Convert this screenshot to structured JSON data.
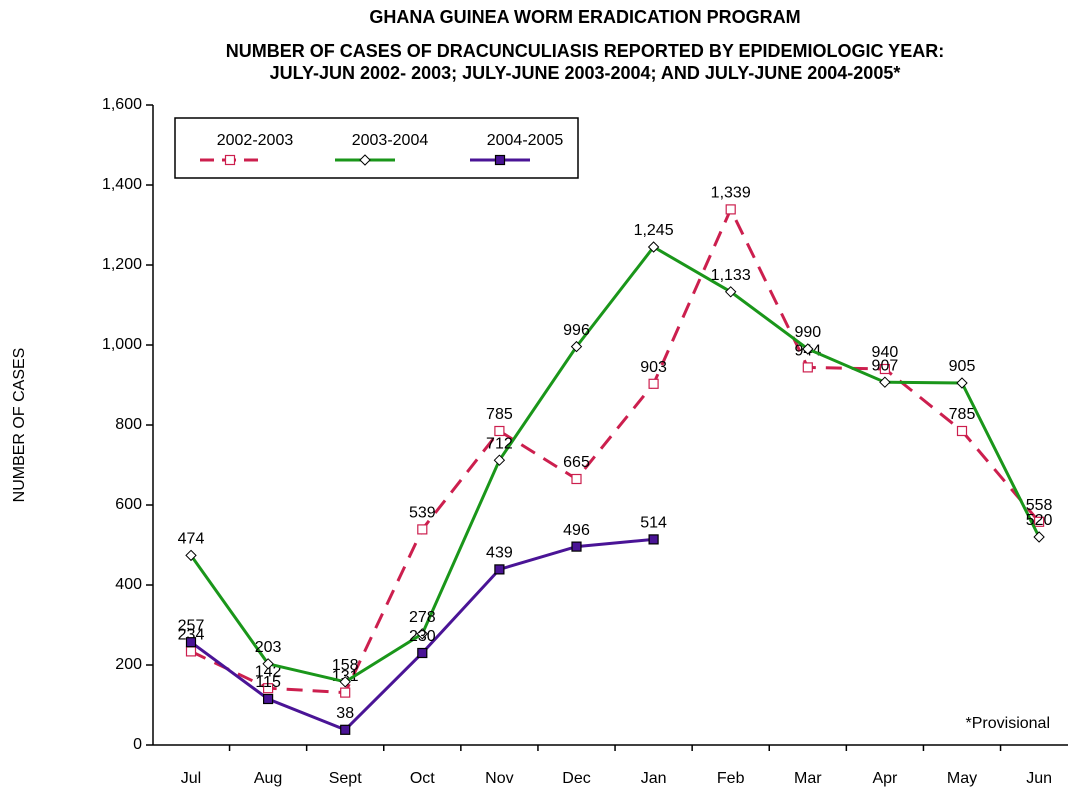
{
  "chart_data": {
    "type": "line",
    "title": "GHANA GUINEA WORM ERADICATION PROGRAM",
    "subtitle": [
      "NUMBER OF CASES OF DRACUNCULIASIS REPORTED BY EPIDEMIOLOGIC YEAR:",
      "JULY-JUN 2002- 2003; JULY-JUNE 2003-2004; AND JULY-JUNE 2004-2005*"
    ],
    "y_label": "NUMBER OF CASES",
    "annotation": "*Provisional",
    "categories": [
      "Jul",
      "Aug",
      "Sept",
      "Oct",
      "Nov",
      "Dec",
      "Jan",
      "Feb",
      "Mar",
      "Apr",
      "May",
      "Jun"
    ],
    "series": [
      {
        "name": "2002-2003",
        "color": "#cc1f4e",
        "dashed": true,
        "marker": "square",
        "values": [
          234,
          142,
          131,
          539,
          785,
          665,
          903,
          1339,
          944,
          940,
          785,
          558
        ],
        "value_labels": [
          "234",
          "142",
          "131",
          "539",
          "785",
          "665",
          "903",
          "1,339",
          "944",
          "940",
          "785",
          "558"
        ]
      },
      {
        "name": "2003-2004",
        "color": "#1a961a",
        "dashed": false,
        "marker": "diamond",
        "values": [
          474,
          203,
          158,
          278,
          712,
          996,
          1245,
          1133,
          990,
          907,
          905,
          520
        ],
        "value_labels": [
          "474",
          "203",
          "158",
          "278",
          "712",
          "996",
          "1,245",
          "1,133",
          "990",
          "907",
          "905",
          "520"
        ]
      },
      {
        "name": "2004-2005",
        "color": "#4a1496",
        "dashed": false,
        "marker": "filled-square",
        "values": [
          257,
          115,
          38,
          230,
          439,
          496,
          514,
          null,
          null,
          null,
          null,
          null
        ],
        "value_labels": [
          "257",
          "115",
          "38",
          "230",
          "439",
          "496",
          "514",
          null,
          null,
          null,
          null,
          null
        ]
      }
    ],
    "ylim": [
      0,
      1600
    ],
    "yticks": [
      0,
      200,
      400,
      600,
      800,
      {
        "value": 1000,
        "label": "1,000"
      },
      {
        "value": 1200,
        "label": "1,200"
      },
      {
        "value": 1400,
        "label": "1,400"
      },
      {
        "value": 1600,
        "label": "1,600"
      }
    ],
    "legend": "top-left"
  }
}
